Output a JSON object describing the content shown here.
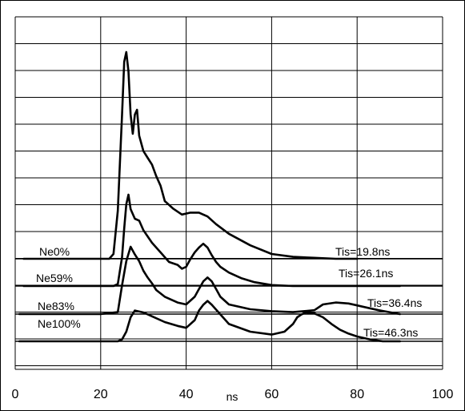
{
  "chart_data": {
    "type": "line",
    "xlabel": "ns",
    "ylabel": "",
    "xlim": [
      0,
      100
    ],
    "grid": true,
    "x_ticks": [
      0,
      20,
      40,
      60,
      80,
      100
    ],
    "series": [
      {
        "name": "Ne0%",
        "annotation": "Tis=19.8ns",
        "baseline": 0,
        "x": [
          2,
          10,
          20,
          22,
          23,
          24,
          25,
          25.5,
          26,
          26.5,
          27,
          27.5,
          28,
          28.5,
          29,
          30,
          31,
          32,
          33,
          34,
          35,
          37,
          39,
          41,
          43,
          45,
          47,
          50,
          55,
          60,
          65,
          70,
          75,
          80
        ],
        "y": [
          0,
          0,
          0,
          0,
          5,
          50,
          150,
          205,
          215,
          195,
          150,
          130,
          150,
          155,
          128,
          112,
          105,
          98,
          86,
          76,
          60,
          52,
          46,
          48,
          48,
          44,
          36,
          26,
          14,
          5,
          2,
          1,
          0,
          0
        ]
      },
      {
        "name": "Ne59%",
        "annotation": "Tis=26.1ns",
        "baseline": 0,
        "x": [
          2,
          10,
          20,
          23,
          24,
          25,
          25.5,
          26,
          26.5,
          27,
          28,
          29,
          30,
          32,
          34,
          36,
          38,
          39,
          40,
          41,
          42,
          43,
          44,
          45,
          46,
          47,
          48,
          50,
          53,
          56,
          60,
          65,
          70,
          80,
          90
        ],
        "y": [
          0,
          0,
          0,
          0,
          2,
          30,
          60,
          85,
          95,
          80,
          70,
          68,
          58,
          45,
          35,
          25,
          22,
          18,
          20,
          28,
          35,
          40,
          44,
          40,
          32,
          25,
          20,
          14,
          8,
          4,
          1,
          0,
          0,
          0,
          0
        ]
      },
      {
        "name": "Ne83%",
        "annotation": "Tis=36.4ns",
        "baseline": 0,
        "x": [
          1,
          10,
          20,
          24,
          25,
          26,
          27,
          28,
          29,
          30,
          31,
          32,
          33,
          35,
          38,
          40,
          42,
          43,
          44,
          45,
          46,
          47,
          48,
          50,
          55,
          60,
          65,
          70,
          72,
          75,
          78,
          80,
          85,
          90
        ],
        "y": [
          0,
          0,
          0,
          2,
          30,
          55,
          70,
          62,
          55,
          45,
          38,
          32,
          25,
          18,
          12,
          10,
          18,
          26,
          34,
          38,
          34,
          26,
          18,
          10,
          5,
          3,
          2,
          4,
          10,
          12,
          11,
          9,
          4,
          0
        ]
      },
      {
        "name": "Ne100%",
        "annotation": "Tis=46.3ns",
        "baseline": 0,
        "x": [
          1,
          10,
          20,
          24,
          25,
          26,
          27,
          28,
          30,
          32,
          35,
          38,
          40,
          42,
          43,
          44,
          45,
          46,
          48,
          50,
          55,
          60,
          63,
          65,
          66,
          67,
          68,
          70,
          72,
          74,
          76,
          78,
          80,
          83,
          86,
          90
        ],
        "y": [
          0,
          0,
          0,
          0,
          2,
          10,
          25,
          32,
          30,
          26,
          20,
          16,
          14,
          22,
          32,
          38,
          42,
          38,
          28,
          18,
          10,
          7,
          10,
          18,
          25,
          28,
          30,
          29,
          25,
          18,
          12,
          8,
          5,
          2,
          0,
          0
        ]
      }
    ]
  }
}
